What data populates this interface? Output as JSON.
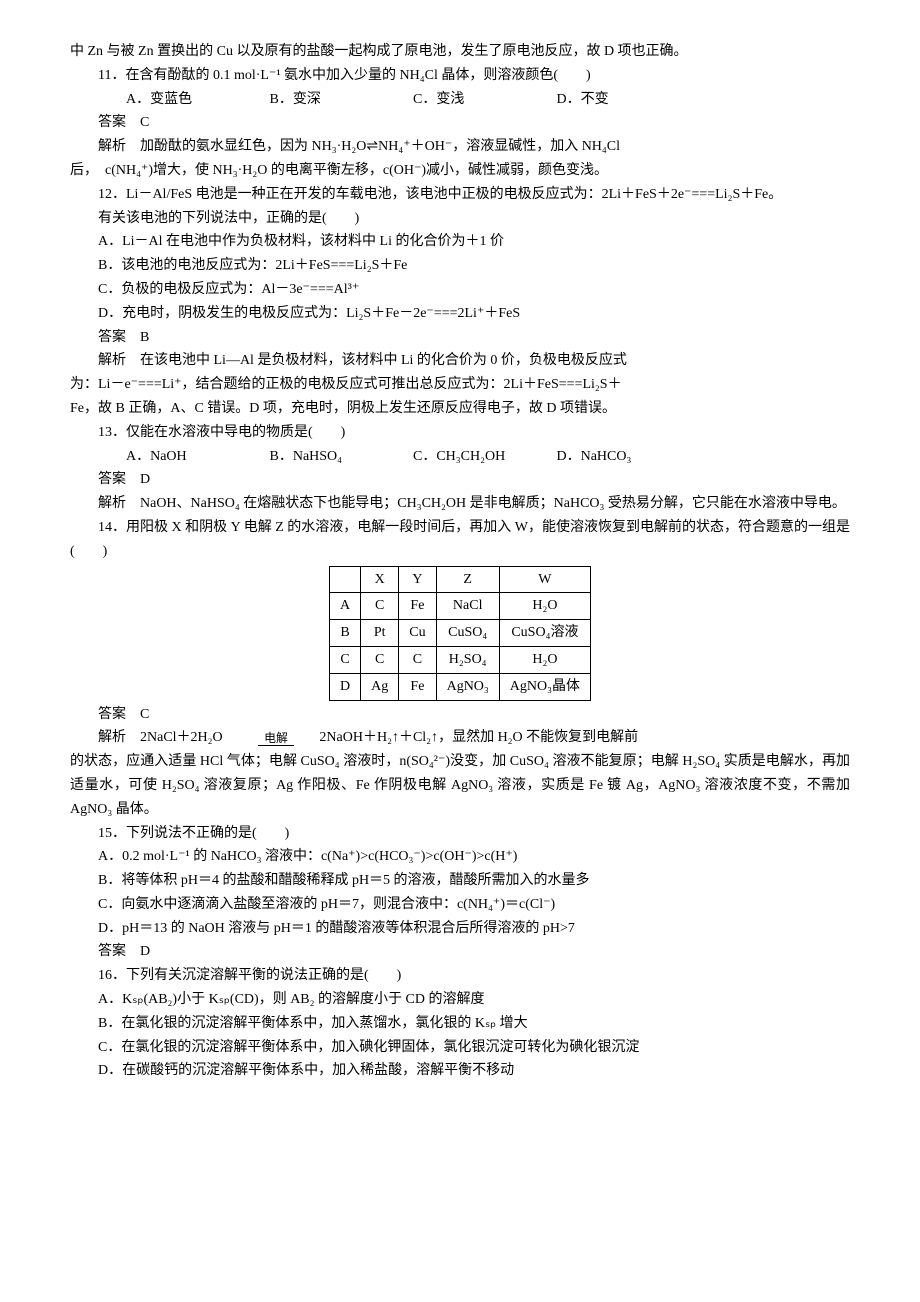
{
  "intro": "中 Zn 与被 Zn 置换出的 Cu 以及原有的盐酸一起构成了原电池，发生了原电池反应，故 D 项也正确。",
  "q11": {
    "stem": "11．在含有酚酞的 0.1 mol·L⁻¹ 氨水中加入少量的 NH₄Cl 晶体，则溶液颜色(　　)",
    "options": {
      "a": "A．变蓝色",
      "b": "B．变深",
      "c": "C．变浅",
      "d": "D．不变"
    },
    "answer": "答案　C",
    "expl_a": "解析　加酚酞的氨水显红色，因为 NH₃·H₂O⇌NH₄⁺＋OH⁻，溶液显碱性，加入 NH₄Cl",
    "expl_b": "后，　c(NH₄⁺)增大，使 NH₃·H₂O 的电离平衡左移，c(OH⁻)减小，碱性减弱，颜色变浅。"
  },
  "q12": {
    "stem_a": "12．Li－Al/FeS 电池是一种正在开发的车载电池，该电池中正极的电极反应式为：2Li＋FeS＋2e⁻===Li₂S＋Fe。",
    "stem_b": "有关该电池的下列说法中，正确的是(　　)",
    "opts": {
      "a": "A．Li－Al 在电池中作为负极材料，该材料中 Li 的化合价为＋1 价",
      "b": "B．该电池的电池反应式为：2Li＋FeS===Li₂S＋Fe",
      "c": "C．负极的电极反应式为：Al－3e⁻===Al³⁺",
      "d": "D．充电时，阴极发生的电极反应式为：Li₂S＋Fe－2e⁻===2Li⁺＋FeS"
    },
    "answer": "答案　B",
    "expl_a": "解析　在该电池中 Li—Al 是负极材料，该材料中 Li 的化合价为 0 价，负极电极反应式",
    "expl_b": "为：Li－e⁻===Li⁺，结合题给的正极的电极反应式可推出总反应式为：2Li＋FeS===Li₂S＋",
    "expl_c": "Fe，故 B 正确，A、C 错误。D 项，充电时，阴极上发生还原反应得电子，故 D 项错误。"
  },
  "q13": {
    "stem": "13．仅能在水溶液中导电的物质是(　　)",
    "options": {
      "a": "A．NaOH",
      "b": "B．NaHSO₄",
      "c": "C．CH₃CH₂OH",
      "d": "D．NaHCO₃"
    },
    "answer": "答案　D",
    "expl": "解析　NaOH、NaHSO₄ 在熔融状态下也能导电；CH₃CH₂OH 是非电解质；NaHCO₃ 受热易分解，它只能在水溶液中导电。"
  },
  "q14": {
    "stem": "14．用阳极 X 和阴极 Y 电解 Z 的水溶液，电解一段时间后，再加入 W，能使溶液恢复到电解前的状态，符合题意的一组是(　　)",
    "table": {
      "headers": [
        "",
        "X",
        "Y",
        "Z",
        "W"
      ],
      "rows": [
        [
          "A",
          "C",
          "Fe",
          "NaCl",
          "H₂O"
        ],
        [
          "B",
          "Pt",
          "Cu",
          "CuSO₄",
          "CuSO₄溶液"
        ],
        [
          "C",
          "C",
          "C",
          "H₂SO₄",
          "H₂O"
        ],
        [
          "D",
          "Ag",
          "Fe",
          "AgNO₃",
          "AgNO₃晶体"
        ]
      ]
    },
    "answer": "答案　C",
    "expl_pre": "解析　2NaCl＋2H₂O",
    "elec_top": "电解",
    "expl_post": " 2NaOH＋H₂↑＋Cl₂↑，显然加 H₂O 不能恢复到电解前",
    "expl_b": "的状态，应通入适量 HCl 气体；电解 CuSO₄ 溶液时，n(SO₄²⁻)没变，加 CuSO₄ 溶液不能复原；电解 H₂SO₄ 实质是电解水，再加适量水，可使 H₂SO₄ 溶液复原；Ag 作阳极、Fe 作阴极电解 AgNO₃ 溶液，实质是 Fe 镀 Ag，AgNO₃ 溶液浓度不变，不需加 AgNO₃ 晶体。"
  },
  "q15": {
    "stem": "15．下列说法不正确的是(　　)",
    "opts": {
      "a": "A．0.2 mol·L⁻¹ 的 NaHCO₃ 溶液中：c(Na⁺)>c(HCO₃⁻)>c(OH⁻)>c(H⁺)",
      "b": "B．将等体积 pH＝4 的盐酸和醋酸稀释成 pH＝5 的溶液，醋酸所需加入的水量多",
      "c": "C．向氨水中逐滴滴入盐酸至溶液的 pH＝7，则混合液中：c(NH₄⁺)＝c(Cl⁻)",
      "d": "D．pH＝13 的 NaOH 溶液与 pH＝1 的醋酸溶液等体积混合后所得溶液的 pH>7"
    },
    "answer": "答案　D"
  },
  "q16": {
    "stem": "16．下列有关沉淀溶解平衡的说法正确的是(　　)",
    "opts": {
      "a": "A．Kₛₚ(AB₂)小于 Kₛₚ(CD)，则 AB₂ 的溶解度小于 CD 的溶解度",
      "b": "B．在氯化银的沉淀溶解平衡体系中，加入蒸馏水，氯化银的 Kₛₚ 增大",
      "c": "C．在氯化银的沉淀溶解平衡体系中，加入碘化钾固体，氯化银沉淀可转化为碘化银沉淀",
      "d": "D．在碳酸钙的沉淀溶解平衡体系中，加入稀盐酸，溶解平衡不移动"
    }
  }
}
